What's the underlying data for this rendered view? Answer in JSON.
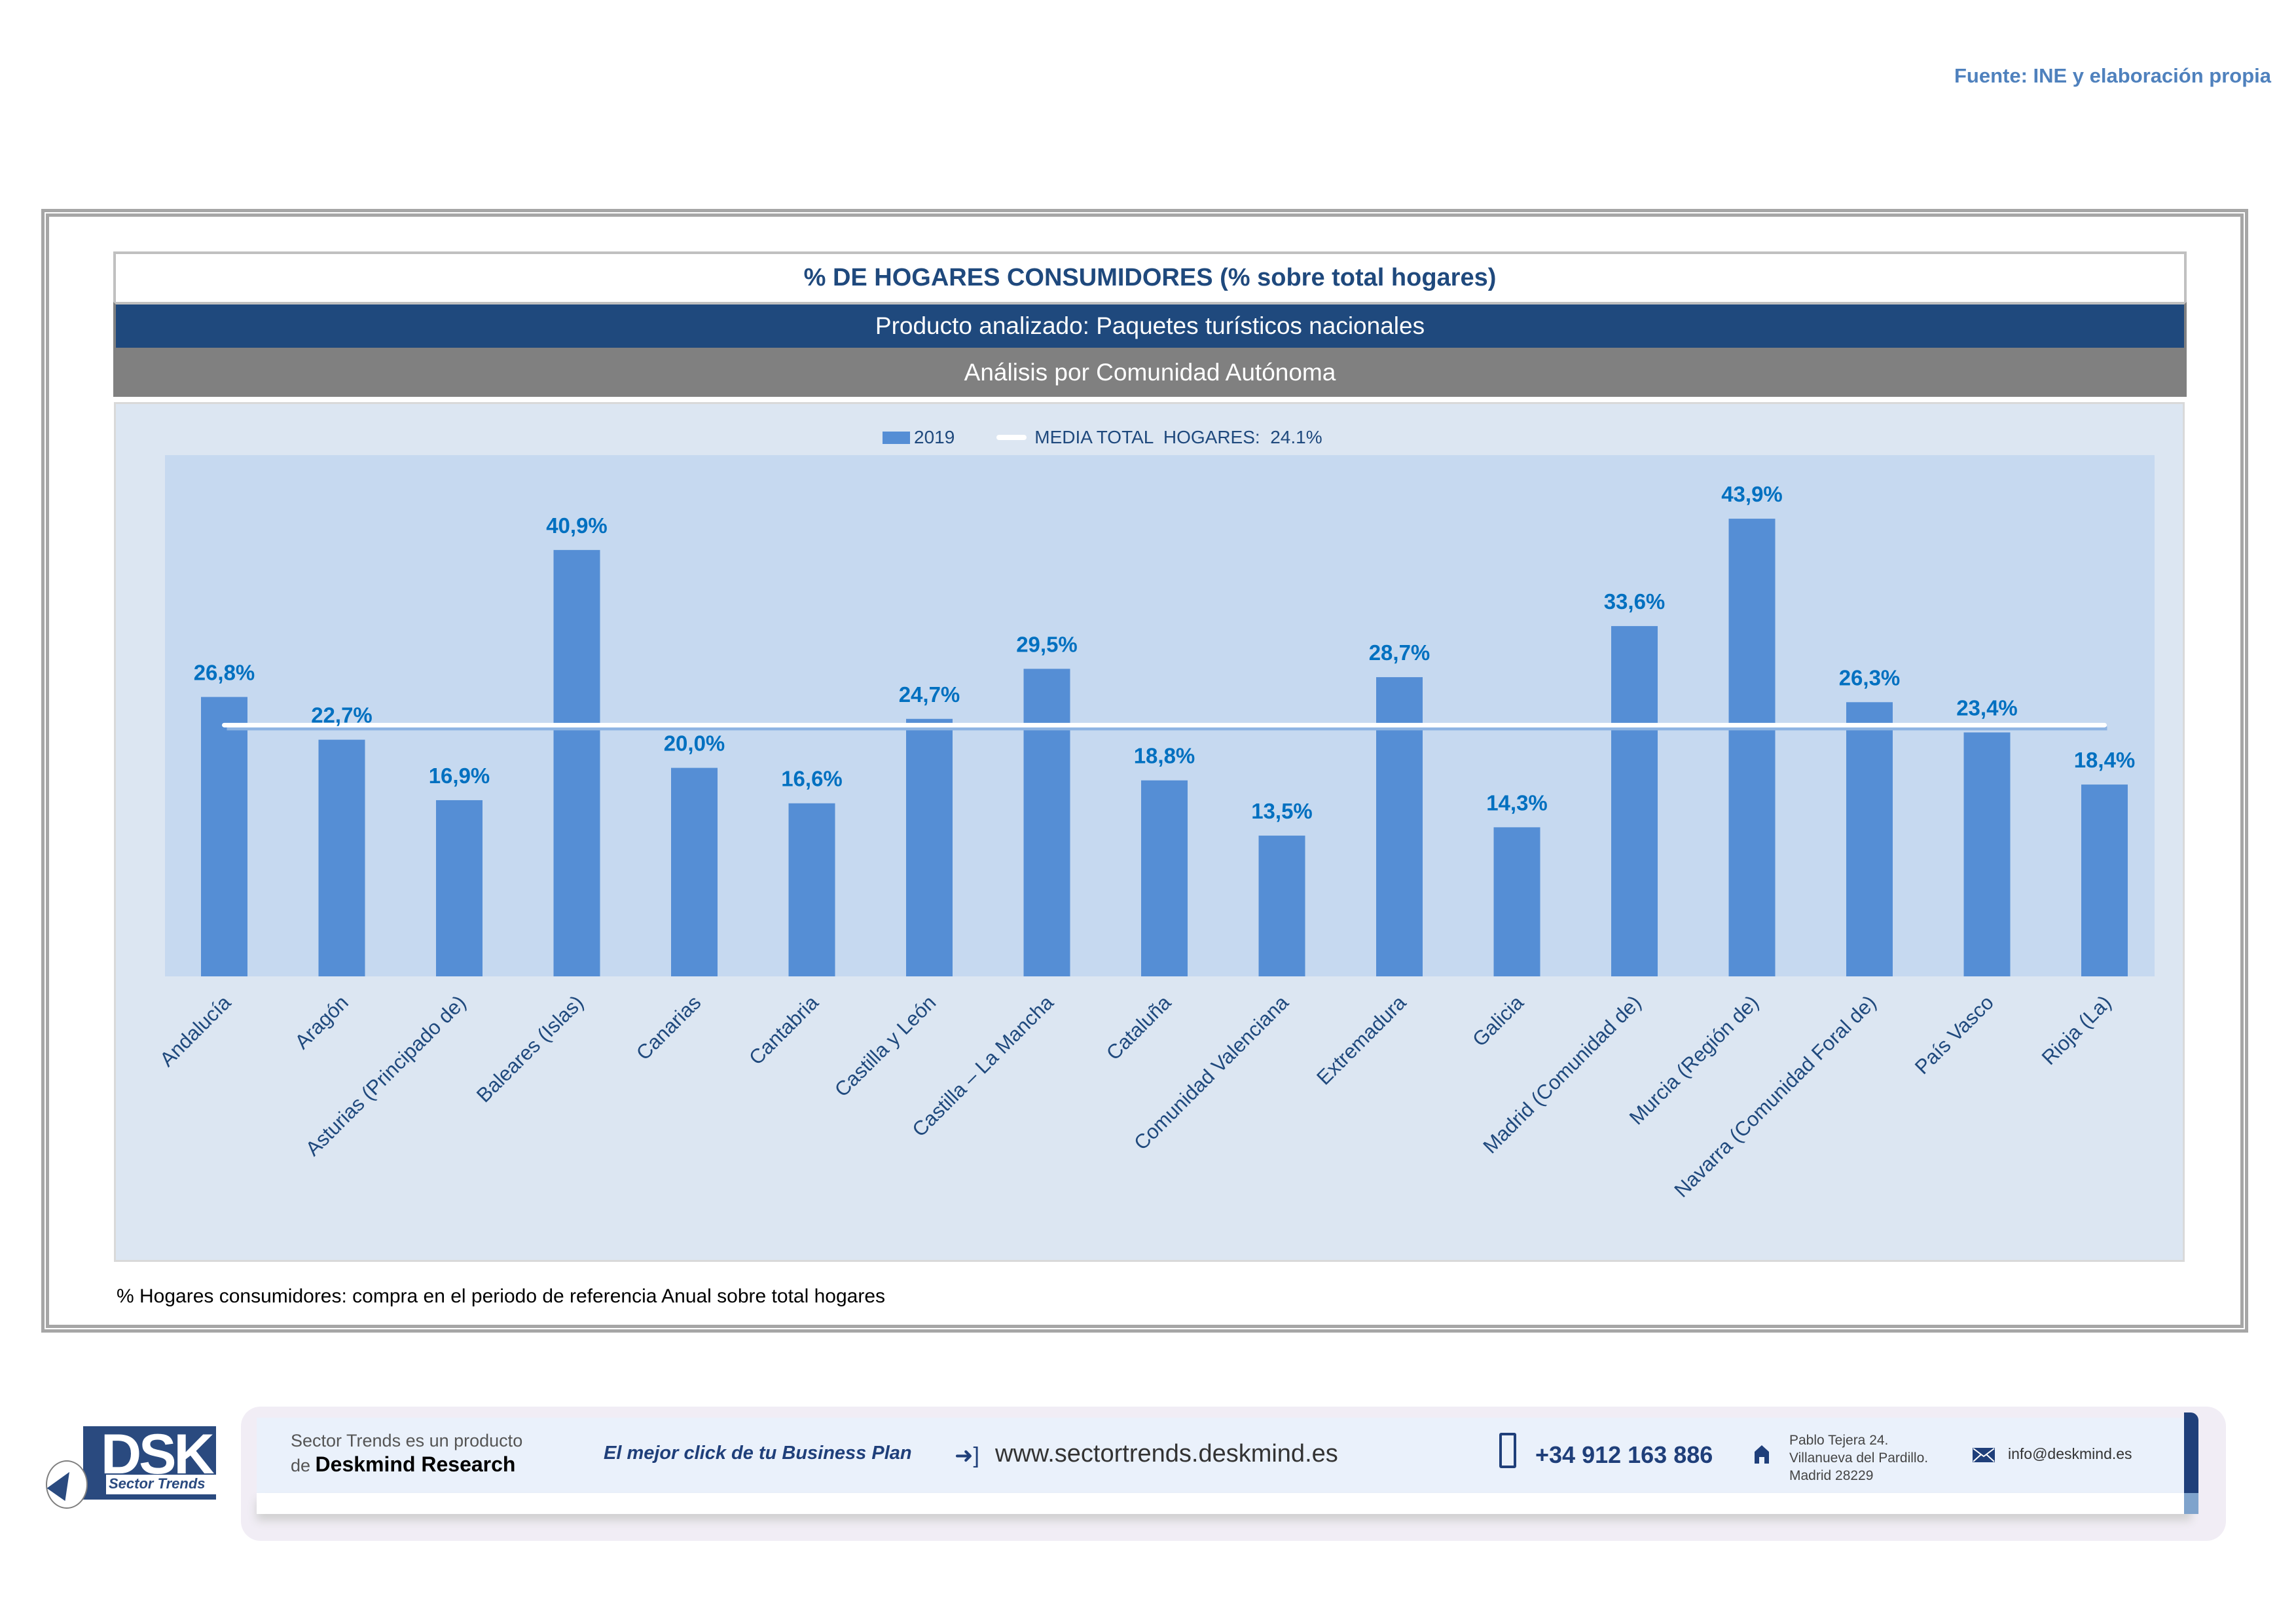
{
  "source": "Fuente: INE y elaboración propia",
  "header": {
    "title": "% DE HOGARES CONSUMIDORES (% sobre total hogares)",
    "product": "Producto analizado: Paquetes turísticos nacionales",
    "analysis": "Análisis por Comunidad Autónoma"
  },
  "colors": {
    "bar": "#558ed5",
    "mean_line": "#ffffff",
    "data_label": "#0070c0",
    "header_blue": "#1f497d",
    "header_gray": "#808080",
    "panel_bg": "#dce6f2",
    "plot_bg": "#c6d9f0"
  },
  "chart_data": {
    "type": "bar",
    "title": "% DE HOGARES CONSUMIDORES (% sobre total hogares)",
    "xlabel": "",
    "ylabel": "",
    "ylim": [
      0,
      50
    ],
    "grid": false,
    "legend_position": "top-center",
    "legend": [
      {
        "name": "2019",
        "kind": "bar"
      },
      {
        "name": "MEDIA TOTAL  HOGARES:  24.1%",
        "kind": "line"
      }
    ],
    "categories": [
      "Andalucía",
      "Aragón",
      "Asturias (Principado de)",
      "Baleares (Islas)",
      "Canarias",
      "Cantabria",
      "Castilla y León",
      "Castilla – La Mancha",
      "Cataluña",
      "Comunidad Valenciana",
      "Extremadura",
      "Galicia",
      "Madrid (Comunidad de)",
      "Murcia (Región de)",
      "Navarra (Comunidad Foral de)",
      "País Vasco",
      "Rioja (La)"
    ],
    "series": [
      {
        "name": "2019",
        "values": [
          26.8,
          22.7,
          16.9,
          40.9,
          20.0,
          16.6,
          24.7,
          29.5,
          18.8,
          13.5,
          28.7,
          14.3,
          33.6,
          43.9,
          26.3,
          23.4,
          18.4
        ],
        "labels": [
          "26,8%",
          "22,7%",
          "16,9%",
          "40,9%",
          "20,0%",
          "16,6%",
          "24,7%",
          "29,5%",
          "18,8%",
          "13,5%",
          "28,7%",
          "14,3%",
          "33,6%",
          "43,9%",
          "26,3%",
          "23,4%",
          "18,4%"
        ]
      }
    ],
    "reference_line": {
      "name": "MEDIA TOTAL HOGARES",
      "value": 24.1
    }
  },
  "footnote": "% Hogares consumidores: compra en el periodo de referencia Anual sobre total hogares",
  "footer": {
    "logo_text": "DSK",
    "logo_sub": "Sector Trends",
    "line1": "Sector Trends es un producto",
    "line2_prefix": "de ",
    "line2_brand": "Deskmind Research",
    "slogan": "El mejor click de tu Business Plan",
    "website": "www.sectortrends.deskmind.es",
    "phone": "+34 912 163 886",
    "address": [
      "Pablo Tejera 24.",
      "Villanueva del Pardillo.",
      "Madrid 28229"
    ],
    "email": "info@deskmind.es"
  }
}
